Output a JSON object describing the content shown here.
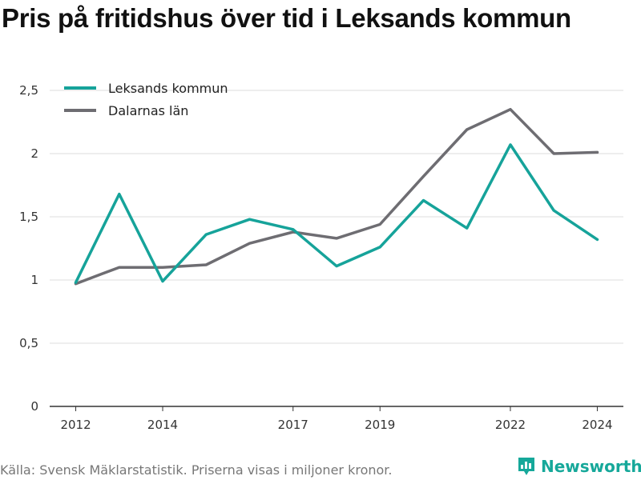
{
  "title": "Pris på fritidshus över tid i Leksands kommun",
  "footer": {
    "source": "Källa: Svensk Mäklarstatistik. Priserna visas i miljoner kronor.",
    "brand": "Newsworthy",
    "brand_icon": "bar-chart-logo-icon"
  },
  "colors": {
    "leksand": "#16a39a",
    "dalarna": "#6e6d72",
    "grid": "#dddddd",
    "axis": "#333333"
  },
  "chart_data": {
    "type": "line",
    "title": "Pris på fritidshus över tid i Leksands kommun",
    "xlabel": "",
    "ylabel": "",
    "x": [
      2012,
      2013,
      2014,
      2015,
      2016,
      2017,
      2018,
      2019,
      2020,
      2021,
      2022,
      2023,
      2024
    ],
    "xlim": [
      2011.4,
      2024.6
    ],
    "ylim": [
      0,
      2.5
    ],
    "x_ticks": [
      2012,
      2014,
      2017,
      2019,
      2022,
      2024
    ],
    "y_ticks": [
      0,
      0.5,
      1,
      1.5,
      2,
      2.5
    ],
    "y_tick_labels": [
      "0",
      "0,5",
      "1",
      "1,5",
      "2",
      "2,5"
    ],
    "grid": true,
    "legend_position": "top-left",
    "series": [
      {
        "name": "Leksands kommun",
        "color": "#16a39a",
        "values": [
          0.98,
          1.68,
          0.99,
          1.36,
          1.48,
          1.4,
          1.11,
          1.26,
          1.63,
          1.41,
          2.07,
          1.55,
          1.32
        ]
      },
      {
        "name": "Dalarnas län",
        "color": "#6e6d72",
        "values": [
          0.97,
          1.1,
          1.1,
          1.12,
          1.29,
          1.38,
          1.33,
          1.44,
          1.82,
          2.19,
          2.35,
          2.0,
          2.01
        ]
      }
    ]
  }
}
